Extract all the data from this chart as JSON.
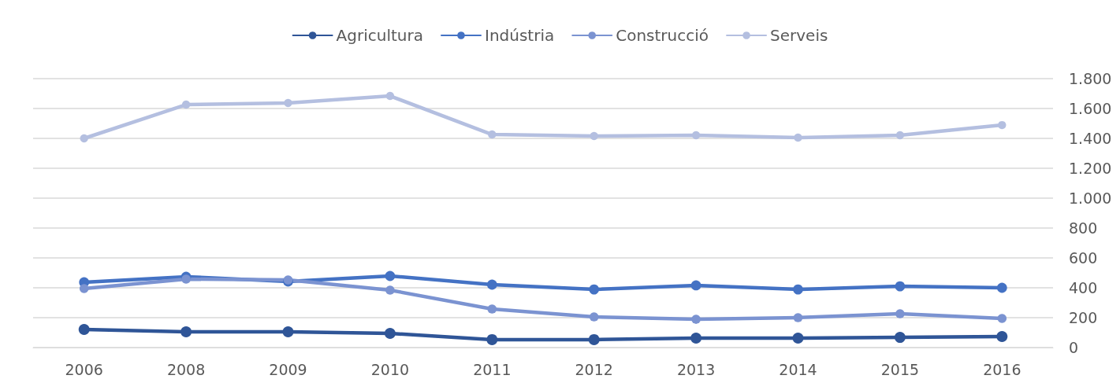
{
  "chart_data": {
    "type": "line",
    "categories": [
      "2006",
      "2008",
      "2009",
      "2010",
      "2011",
      "2012",
      "2013",
      "2014",
      "2015",
      "2016"
    ],
    "series": [
      {
        "name": "Agricultura",
        "color": "#2f5597",
        "values": [
          121,
          105,
          105,
          95,
          53,
          53,
          63,
          63,
          68,
          74
        ]
      },
      {
        "name": "Indústria",
        "color": "#4472c4",
        "values": [
          437,
          474,
          442,
          479,
          421,
          389,
          416,
          389,
          410,
          400
        ]
      },
      {
        "name": "Construcció",
        "color": "#7b93d1",
        "values": [
          395,
          458,
          453,
          384,
          258,
          205,
          189,
          200,
          226,
          195
        ]
      },
      {
        "name": "Serveis",
        "color": "#b4bfe0",
        "values": [
          1400,
          1626,
          1637,
          1684,
          1426,
          1416,
          1421,
          1405,
          1421,
          1489
        ]
      }
    ],
    "ylim": [
      0,
      1800
    ],
    "yticks": [
      0,
      200,
      400,
      600,
      800,
      {
        "value": 1000,
        "label": "1.000"
      },
      {
        "value": 1200,
        "label": "1.200"
      },
      {
        "value": 1400,
        "label": "1.400"
      },
      {
        "value": 1600,
        "label": "1.600"
      },
      {
        "value": 1800,
        "label": "1.800"
      }
    ],
    "grid": "y",
    "legend": "top",
    "marker": "circle",
    "line_style": "solid"
  }
}
